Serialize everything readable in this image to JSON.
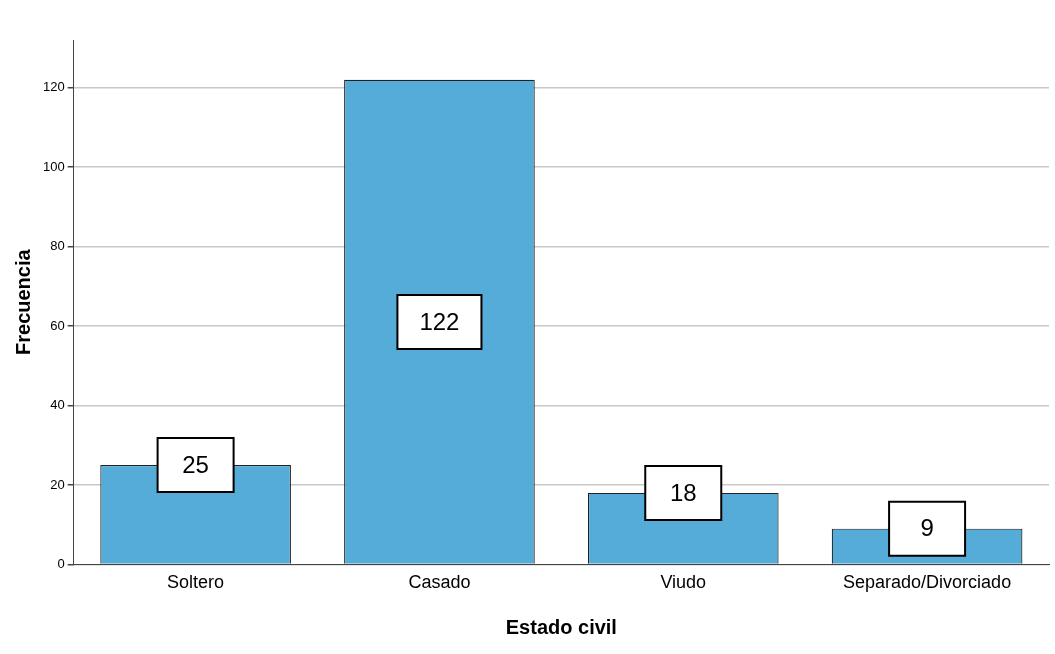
{
  "chart_data": {
    "type": "bar",
    "xlabel": "Estado civil",
    "ylabel": "Frecuencia",
    "categories": [
      "Soltero",
      "Casado",
      "Viudo",
      "Separado/Divorciado"
    ],
    "values": [
      25,
      122,
      18,
      9
    ],
    "color": "#55acd9",
    "ylim": [
      0,
      132
    ],
    "yticks": [
      0,
      20,
      40,
      60,
      80,
      100,
      120
    ],
    "grid": "y",
    "data_labels": true,
    "legend": false
  }
}
